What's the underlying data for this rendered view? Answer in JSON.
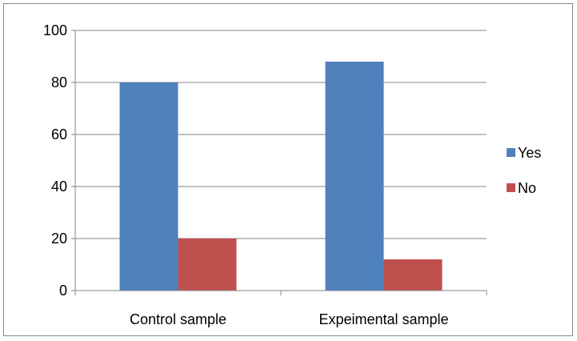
{
  "chart_data": {
    "type": "bar",
    "categories": [
      "Control sample",
      "Expeimental sample"
    ],
    "series": [
      {
        "name": "Yes",
        "values": [
          80,
          88
        ],
        "color": "#4F81BD"
      },
      {
        "name": "No",
        "values": [
          20,
          12
        ],
        "color": "#C0504D"
      }
    ],
    "ylim": [
      0,
      100
    ],
    "yticks": [
      0,
      20,
      40,
      60,
      80,
      100
    ],
    "grid": true,
    "legend_position": "right",
    "title": "",
    "xlabel": "",
    "ylabel": ""
  }
}
